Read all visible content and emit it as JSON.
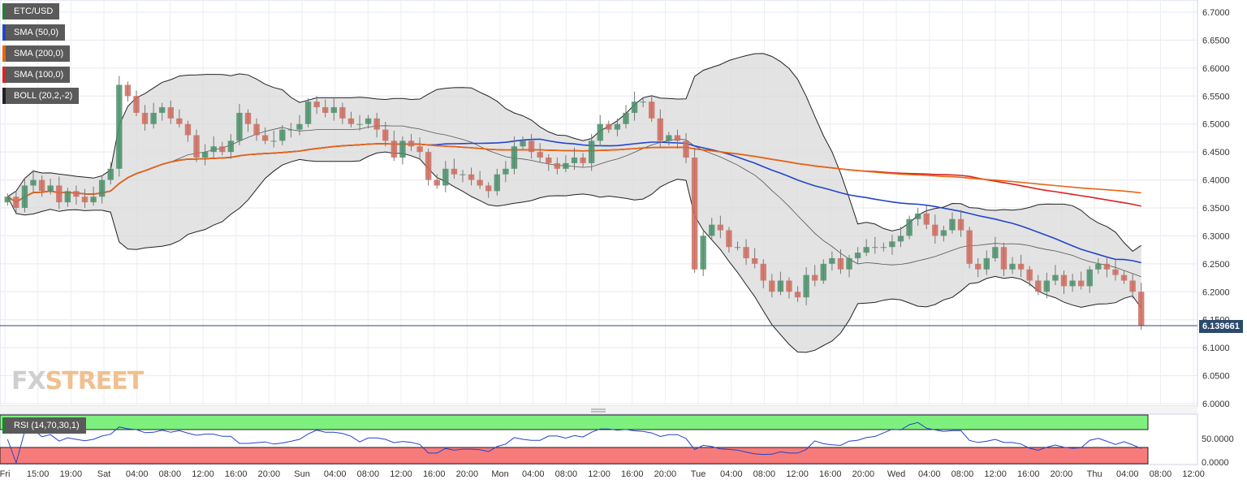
{
  "legends": [
    {
      "label": "ETC/USD",
      "color": "#2b7a3a"
    },
    {
      "label": "SMA (50,0)",
      "color": "#2244cc"
    },
    {
      "label": "SMA (200,0)",
      "color": "#e8650f"
    },
    {
      "label": "SMA (100,0)",
      "color": "#dd2222"
    },
    {
      "label": "BOLL (20,2,-2)",
      "color": "#222222"
    }
  ],
  "rsi_legend": "RSI (14,70,30,1)",
  "current_price": "6.139661",
  "logo": {
    "fx": "FX",
    "street": "STREET"
  },
  "chart_data": {
    "type": "candlestick",
    "symbol": "ETC/USD",
    "ylim": [
      6.0,
      6.7
    ],
    "y_ticks": [
      "6.7000",
      "6.6500",
      "6.6000",
      "6.5500",
      "6.5000",
      "6.4500",
      "6.4000",
      "6.3500",
      "6.3000",
      "6.2500",
      "6.2000",
      "6.1500",
      "6.1000",
      "6.0500",
      "6.0000"
    ],
    "x_ticks": [
      "Fri",
      "15:00",
      "19:00",
      "Sat",
      "04:00",
      "08:00",
      "12:00",
      "16:00",
      "20:00",
      "Sun",
      "04:00",
      "08:00",
      "12:00",
      "16:00",
      "20:00",
      "Mon",
      "04:00",
      "08:00",
      "12:00",
      "16:00",
      "20:00",
      "Tue",
      "04:00",
      "08:00",
      "12:00",
      "16:00",
      "20:00",
      "Wed",
      "04:00",
      "08:00",
      "12:00",
      "16:00",
      "20:00",
      "Thu",
      "04:00",
      "08:00",
      "12:00"
    ],
    "current_price": 6.139661,
    "close": [
      6.37,
      6.35,
      6.39,
      6.4,
      6.38,
      6.39,
      6.36,
      6.38,
      6.37,
      6.36,
      6.37,
      6.4,
      6.42,
      6.57,
      6.55,
      6.52,
      6.5,
      6.52,
      6.53,
      6.51,
      6.5,
      6.48,
      6.44,
      6.45,
      6.46,
      6.45,
      6.47,
      6.52,
      6.5,
      6.48,
      6.47,
      6.47,
      6.49,
      6.49,
      6.5,
      6.54,
      6.53,
      6.52,
      6.53,
      6.51,
      6.5,
      6.5,
      6.51,
      6.49,
      6.47,
      6.44,
      6.47,
      6.46,
      6.45,
      6.4,
      6.39,
      6.42,
      6.41,
      6.41,
      6.4,
      6.39,
      6.38,
      6.41,
      6.42,
      6.46,
      6.47,
      6.45,
      6.44,
      6.43,
      6.42,
      6.43,
      6.44,
      6.43,
      6.47,
      6.5,
      6.49,
      6.5,
      6.52,
      6.54,
      6.54,
      6.51,
      6.47,
      6.48,
      6.47,
      6.44,
      6.24,
      6.3,
      6.32,
      6.31,
      6.28,
      6.28,
      6.26,
      6.25,
      6.22,
      6.2,
      6.22,
      6.2,
      6.19,
      6.23,
      6.22,
      6.25,
      6.26,
      6.24,
      6.26,
      6.27,
      6.28,
      6.28,
      6.28,
      6.29,
      6.3,
      6.33,
      6.34,
      6.32,
      6.3,
      6.31,
      6.33,
      6.31,
      6.25,
      6.24,
      6.26,
      6.28,
      6.24,
      6.25,
      6.24,
      6.22,
      6.2,
      6.22,
      6.23,
      6.21,
      6.22,
      6.21,
      6.24,
      6.25,
      6.24,
      6.23,
      6.22,
      6.2,
      6.14
    ]
  }
}
